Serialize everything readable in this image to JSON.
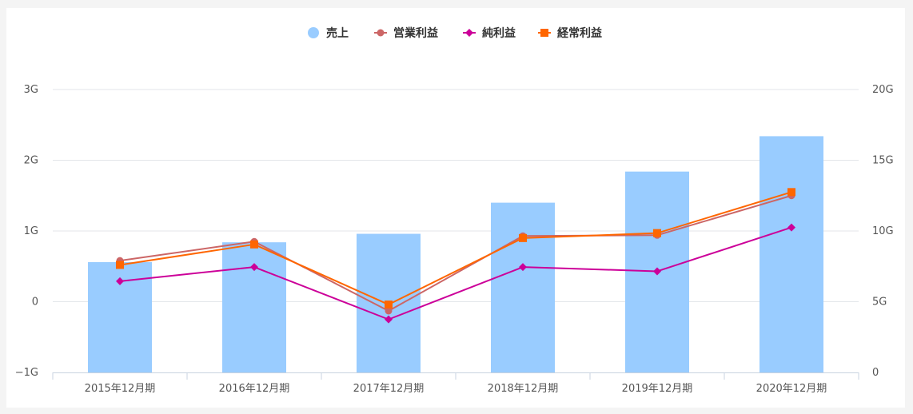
{
  "chart_data": {
    "type": "bar+line",
    "title": "",
    "categories": [
      "2015年12月期",
      "2016年12月期",
      "2017年12月期",
      "2018年12月期",
      "2019年12月期",
      "2020年12月期"
    ],
    "y_left": {
      "ticks": [
        -1,
        0,
        1,
        2,
        3
      ],
      "tick_labels": [
        "−1G",
        "0",
        "1G",
        "2G",
        "3G"
      ],
      "range": [
        -1,
        3
      ],
      "unit": "G"
    },
    "y_right": {
      "ticks": [
        0,
        5,
        10,
        15,
        20
      ],
      "tick_labels": [
        "0",
        "5G",
        "10G",
        "15G",
        "20G"
      ],
      "range": [
        0,
        20
      ],
      "unit": "G"
    },
    "legend_position": "top-center",
    "grid": true,
    "series": [
      {
        "name": "売上",
        "kind": "bar",
        "axis": "right",
        "color": "#99ccff",
        "marker": "circle",
        "values": [
          7.8,
          9.2,
          9.8,
          12.0,
          14.2,
          16.7
        ]
      },
      {
        "name": "営業利益",
        "kind": "line",
        "axis": "left",
        "color": "#cc6666",
        "marker": "circle",
        "values": [
          0.58,
          0.85,
          -0.13,
          0.93,
          0.94,
          1.5
        ]
      },
      {
        "name": "純利益",
        "kind": "line",
        "axis": "left",
        "color": "#cc0099",
        "marker": "diamond",
        "values": [
          0.29,
          0.49,
          -0.25,
          0.49,
          0.43,
          1.05
        ]
      },
      {
        "name": "経常利益",
        "kind": "line",
        "axis": "left",
        "color": "#ff6600",
        "marker": "square",
        "values": [
          0.52,
          0.81,
          -0.04,
          0.9,
          0.97,
          1.55
        ]
      }
    ]
  }
}
